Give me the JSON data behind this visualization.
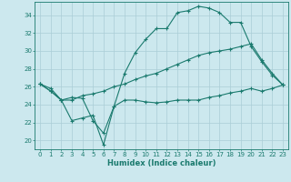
{
  "title": "",
  "xlabel": "Humidex (Indice chaleur)",
  "ylabel": "",
  "bg_color": "#cce8ee",
  "grid_color": "#aacdd6",
  "line_color": "#1a7a6e",
  "xlim": [
    -0.5,
    23.5
  ],
  "ylim": [
    19,
    35.5
  ],
  "xticks": [
    0,
    1,
    2,
    3,
    4,
    5,
    6,
    7,
    8,
    9,
    10,
    11,
    12,
    13,
    14,
    15,
    16,
    17,
    18,
    19,
    20,
    21,
    22,
    23
  ],
  "yticks": [
    20,
    22,
    24,
    26,
    28,
    30,
    32,
    34
  ],
  "series": [
    [
      26.3,
      25.5,
      24.5,
      24.8,
      24.7,
      22.2,
      20.8,
      23.8,
      27.5,
      29.8,
      31.3,
      32.5,
      32.5,
      34.3,
      34.5,
      35.0,
      34.8,
      34.3,
      33.2,
      33.2,
      30.5,
      28.8,
      27.3,
      26.2
    ],
    [
      26.3,
      25.8,
      24.5,
      24.5,
      25.0,
      25.2,
      25.5,
      26.0,
      26.3,
      26.8,
      27.2,
      27.5,
      28.0,
      28.5,
      29.0,
      29.5,
      29.8,
      30.0,
      30.2,
      30.5,
      30.8,
      29.0,
      27.5,
      26.2
    ],
    [
      26.3,
      25.5,
      24.5,
      22.2,
      22.5,
      22.8,
      19.5,
      23.8,
      24.5,
      24.5,
      24.3,
      24.2,
      24.3,
      24.5,
      24.5,
      24.5,
      24.8,
      25.0,
      25.3,
      25.5,
      25.8,
      25.5,
      25.8,
      26.2
    ]
  ],
  "tick_fontsize": 5,
  "xlabel_fontsize": 6,
  "marker_size": 2.5,
  "linewidth": 0.8
}
